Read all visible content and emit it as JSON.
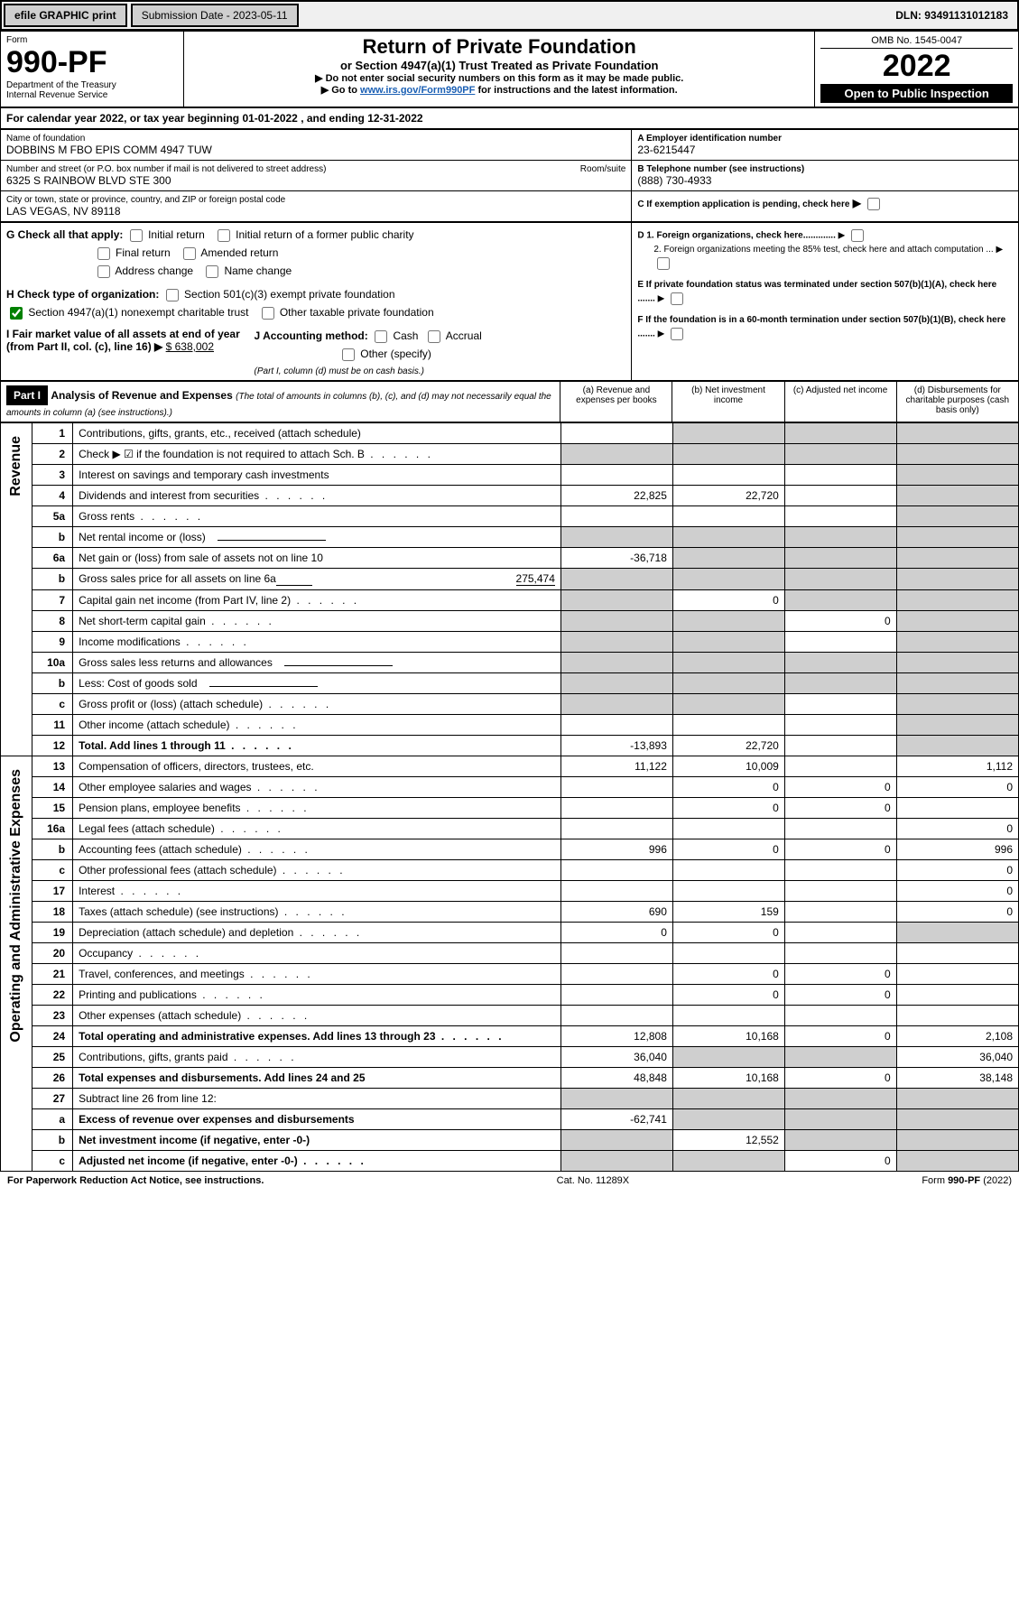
{
  "topbar": {
    "efile": "efile GRAPHIC print",
    "submission_label": "Submission Date - 2023-05-11",
    "dln": "DLN: 93491131012183"
  },
  "header": {
    "form_word": "Form",
    "form_no": "990-PF",
    "dept": "Department of the Treasury",
    "irs": "Internal Revenue Service",
    "title": "Return of Private Foundation",
    "subtitle": "or Section 4947(a)(1) Trust Treated as Private Foundation",
    "note1": "▶ Do not enter social security numbers on this form as it may be made public.",
    "note2_prefix": "▶ Go to ",
    "note2_link": "www.irs.gov/Form990PF",
    "note2_suffix": " for instructions and the latest information.",
    "omb": "OMB No. 1545-0047",
    "year": "2022",
    "inspection": "Open to Public Inspection"
  },
  "period": {
    "text_prefix": "For calendar year 2022, or tax year beginning ",
    "begin": "01-01-2022",
    "mid": " , and ending ",
    "end": "12-31-2022"
  },
  "org": {
    "name_label": "Name of foundation",
    "name": "DOBBINS M FBO EPIS COMM 4947 TUW",
    "addr_label": "Number and street (or P.O. box number if mail is not delivered to street address)",
    "addr": "6325 S RAINBOW BLVD STE 300",
    "room_label": "Room/suite",
    "city_label": "City or town, state or province, country, and ZIP or foreign postal code",
    "city": "LAS VEGAS, NV  89118",
    "ein_label": "A Employer identification number",
    "ein": "23-6215447",
    "phone_label": "B Telephone number (see instructions)",
    "phone": "(888) 730-4933",
    "c_label": "C If exemption application is pending, check here",
    "d1": "D 1. Foreign organizations, check here.............",
    "d2": "2. Foreign organizations meeting the 85% test, check here and attach computation ...",
    "e": "E If private foundation status was terminated under section 507(b)(1)(A), check here .......",
    "f": "F If the foundation is in a 60-month termination under section 507(b)(1)(B), check here .......",
    "g_label": "G Check all that apply:",
    "g_opts": [
      "Initial return",
      "Initial return of a former public charity",
      "Final return",
      "Amended return",
      "Address change",
      "Name change"
    ],
    "h_label": "H Check type of organization:",
    "h_501c3": "Section 501(c)(3) exempt private foundation",
    "h_4947": "Section 4947(a)(1) nonexempt charitable trust",
    "h_other": "Other taxable private foundation",
    "i_label": "I Fair market value of all assets at end of year (from Part II, col. (c), line 16)",
    "i_value": "$  638,002",
    "j_label": "J Accounting method:",
    "j_cash": "Cash",
    "j_accrual": "Accrual",
    "j_other": "Other (specify)",
    "j_note": "(Part I, column (d) must be on cash basis.)"
  },
  "part1": {
    "title": "Part I",
    "heading": "Analysis of Revenue and Expenses",
    "heading_note": " (The total of amounts in columns (b), (c), and (d) may not necessarily equal the amounts in column (a) (see instructions).)",
    "cols": {
      "a": "(a)  Revenue and expenses per books",
      "b": "(b)  Net investment income",
      "c": "(c)  Adjusted net income",
      "d": "(d)  Disbursements for charitable purposes (cash basis only)"
    }
  },
  "sections": {
    "revenue": "Revenue",
    "opadmin": "Operating and Administrative Expenses"
  },
  "rows": [
    {
      "n": "1",
      "t": "Contributions, gifts, grants, etc., received (attach schedule)",
      "a": "",
      "b": "shade",
      "c": "shade",
      "d": "shade"
    },
    {
      "n": "2",
      "t": "Check ▶ ☑ if the foundation is not required to attach Sch. B",
      "a": "shade",
      "b": "shade",
      "c": "shade",
      "d": "shade",
      "dotted": true
    },
    {
      "n": "3",
      "t": "Interest on savings and temporary cash investments",
      "a": "",
      "b": "",
      "c": "",
      "d": "shade"
    },
    {
      "n": "4",
      "t": "Dividends and interest from securities",
      "a": "22,825",
      "b": "22,720",
      "c": "",
      "d": "shade",
      "dotted": true
    },
    {
      "n": "5a",
      "t": "Gross rents",
      "a": "",
      "b": "",
      "c": "",
      "d": "shade",
      "dotted": true
    },
    {
      "n": "b",
      "t": "Net rental income or (loss)",
      "a": "shade",
      "b": "shade",
      "c": "shade",
      "d": "shade",
      "inline": true
    },
    {
      "n": "6a",
      "t": "Net gain or (loss) from sale of assets not on line 10",
      "a": "-36,718",
      "b": "shade",
      "c": "shade",
      "d": "shade"
    },
    {
      "n": "b",
      "t": "Gross sales price for all assets on line 6a",
      "a": "shade",
      "b": "shade",
      "c": "shade",
      "d": "shade",
      "inline_val": "275,474"
    },
    {
      "n": "7",
      "t": "Capital gain net income (from Part IV, line 2)",
      "a": "shade",
      "b": "0",
      "c": "shade",
      "d": "shade",
      "dotted": true
    },
    {
      "n": "8",
      "t": "Net short-term capital gain",
      "a": "shade",
      "b": "shade",
      "c": "0",
      "d": "shade",
      "dotted": true
    },
    {
      "n": "9",
      "t": "Income modifications",
      "a": "shade",
      "b": "shade",
      "c": "",
      "d": "shade",
      "dotted": true
    },
    {
      "n": "10a",
      "t": "Gross sales less returns and allowances",
      "a": "shade",
      "b": "shade",
      "c": "shade",
      "d": "shade",
      "inline": true
    },
    {
      "n": "b",
      "t": "Less: Cost of goods sold",
      "a": "shade",
      "b": "shade",
      "c": "shade",
      "d": "shade",
      "inline": true,
      "dotted": true
    },
    {
      "n": "c",
      "t": "Gross profit or (loss) (attach schedule)",
      "a": "shade",
      "b": "shade",
      "c": "",
      "d": "shade",
      "dotted": true
    },
    {
      "n": "11",
      "t": "Other income (attach schedule)",
      "a": "",
      "b": "",
      "c": "",
      "d": "shade",
      "dotted": true
    },
    {
      "n": "12",
      "t": "Total. Add lines 1 through 11",
      "a": "-13,893",
      "b": "22,720",
      "c": "",
      "d": "shade",
      "bold": true,
      "dotted": true
    }
  ],
  "exp_rows": [
    {
      "n": "13",
      "t": "Compensation of officers, directors, trustees, etc.",
      "a": "11,122",
      "b": "10,009",
      "c": "",
      "d": "1,112"
    },
    {
      "n": "14",
      "t": "Other employee salaries and wages",
      "a": "",
      "b": "0",
      "c": "0",
      "d": "0",
      "dotted": true
    },
    {
      "n": "15",
      "t": "Pension plans, employee benefits",
      "a": "",
      "b": "0",
      "c": "0",
      "d": "",
      "dotted": true
    },
    {
      "n": "16a",
      "t": "Legal fees (attach schedule)",
      "a": "",
      "b": "",
      "c": "",
      "d": "0",
      "dotted": true
    },
    {
      "n": "b",
      "t": "Accounting fees (attach schedule)",
      "a": "996",
      "b": "0",
      "c": "0",
      "d": "996",
      "dotted": true
    },
    {
      "n": "c",
      "t": "Other professional fees (attach schedule)",
      "a": "",
      "b": "",
      "c": "",
      "d": "0",
      "dotted": true
    },
    {
      "n": "17",
      "t": "Interest",
      "a": "",
      "b": "",
      "c": "",
      "d": "0",
      "dotted": true
    },
    {
      "n": "18",
      "t": "Taxes (attach schedule) (see instructions)",
      "a": "690",
      "b": "159",
      "c": "",
      "d": "0",
      "dotted": true
    },
    {
      "n": "19",
      "t": "Depreciation (attach schedule) and depletion",
      "a": "0",
      "b": "0",
      "c": "",
      "d": "shade",
      "dotted": true
    },
    {
      "n": "20",
      "t": "Occupancy",
      "a": "",
      "b": "",
      "c": "",
      "d": "",
      "dotted": true
    },
    {
      "n": "21",
      "t": "Travel, conferences, and meetings",
      "a": "",
      "b": "0",
      "c": "0",
      "d": "",
      "dotted": true
    },
    {
      "n": "22",
      "t": "Printing and publications",
      "a": "",
      "b": "0",
      "c": "0",
      "d": "",
      "dotted": true
    },
    {
      "n": "23",
      "t": "Other expenses (attach schedule)",
      "a": "",
      "b": "",
      "c": "",
      "d": "",
      "dotted": true
    },
    {
      "n": "24",
      "t": "Total operating and administrative expenses. Add lines 13 through 23",
      "a": "12,808",
      "b": "10,168",
      "c": "0",
      "d": "2,108",
      "bold": true,
      "dotted": true
    },
    {
      "n": "25",
      "t": "Contributions, gifts, grants paid",
      "a": "36,040",
      "b": "shade",
      "c": "shade",
      "d": "36,040",
      "dotted": true
    },
    {
      "n": "26",
      "t": "Total expenses and disbursements. Add lines 24 and 25",
      "a": "48,848",
      "b": "10,168",
      "c": "0",
      "d": "38,148",
      "bold": true
    },
    {
      "n": "27",
      "t": "Subtract line 26 from line 12:",
      "a": "shade",
      "b": "shade",
      "c": "shade",
      "d": "shade"
    },
    {
      "n": "a",
      "t": "Excess of revenue over expenses and disbursements",
      "a": "-62,741",
      "b": "shade",
      "c": "shade",
      "d": "shade",
      "bold": true
    },
    {
      "n": "b",
      "t": "Net investment income (if negative, enter -0-)",
      "a": "shade",
      "b": "12,552",
      "c": "shade",
      "d": "shade",
      "bold": true
    },
    {
      "n": "c",
      "t": "Adjusted net income (if negative, enter -0-)",
      "a": "shade",
      "b": "shade",
      "c": "0",
      "d": "shade",
      "bold": true,
      "dotted": true
    }
  ],
  "footer": {
    "left": "For Paperwork Reduction Act Notice, see instructions.",
    "mid": "Cat. No. 11289X",
    "right": "Form 990-PF (2022)"
  },
  "colors": {
    "shade": "#cfcfcf",
    "black": "#000000",
    "link": "#1a5fb4"
  }
}
